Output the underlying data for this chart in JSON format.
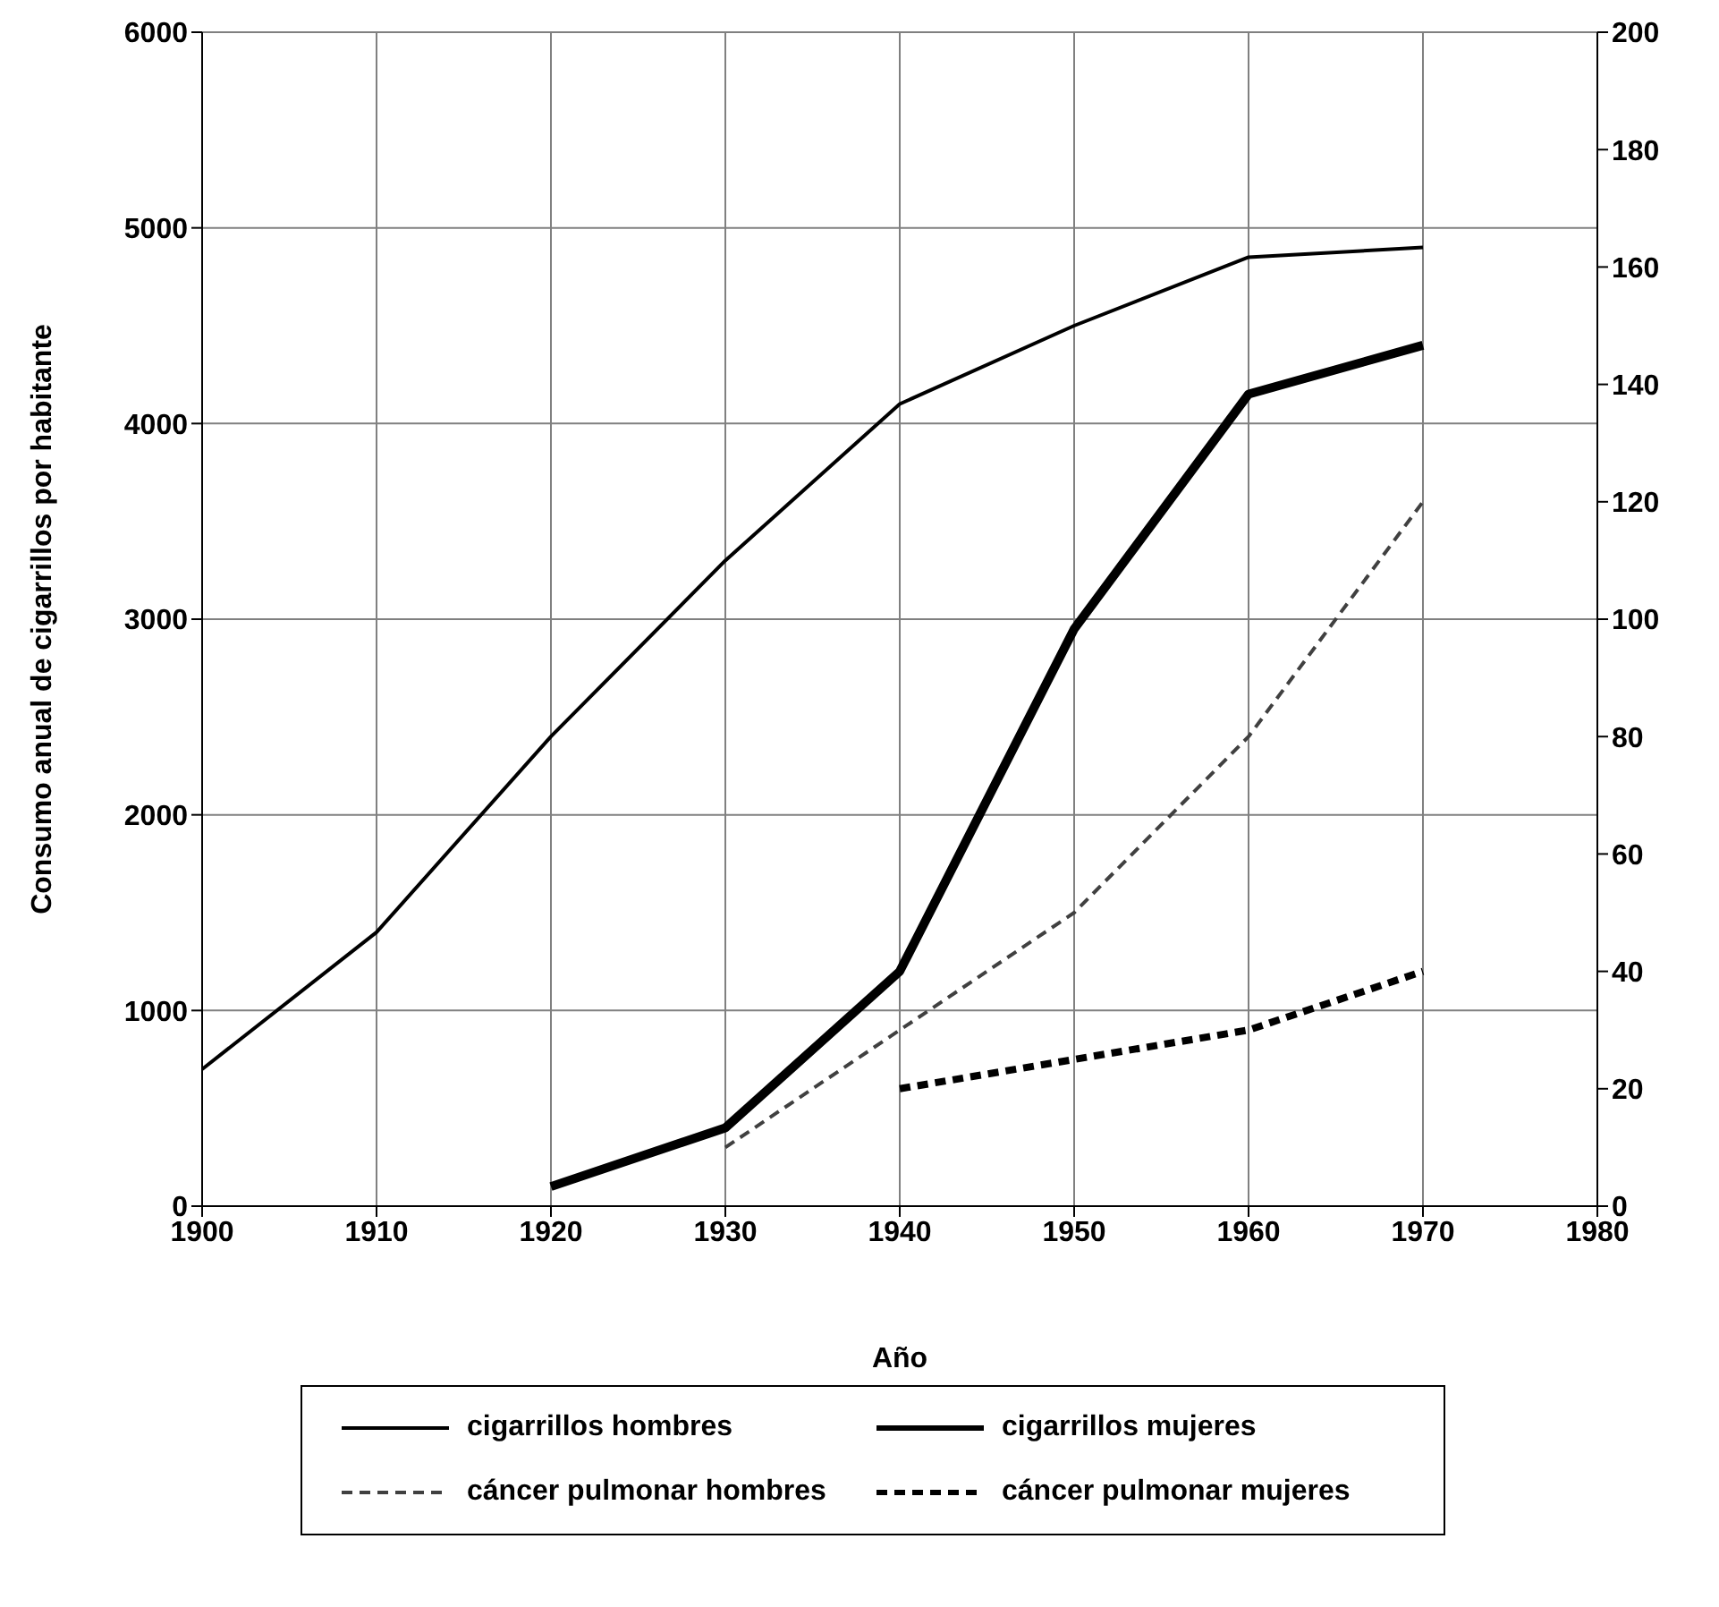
{
  "chart_data": {
    "type": "line",
    "xlabel": "Año",
    "ylabel": "Consumo anual de cigarrillos por habitante",
    "x": [
      1900,
      1910,
      1920,
      1930,
      1940,
      1950,
      1960,
      1970
    ],
    "series": [
      {
        "name": "cigarrillos hombres",
        "color": "#000000",
        "line_style": "solid",
        "values": [
          700,
          1400,
          2400,
          3300,
          4100,
          4500,
          4850,
          4900
        ]
      },
      {
        "name": "cigarrillos mujeres",
        "color": "#000000",
        "line_style": "solid",
        "values": [
          null,
          null,
          100,
          400,
          1200,
          2950,
          4150,
          4400
        ]
      },
      {
        "name": "cáncer pulmonar hombres",
        "color": "#404040",
        "line_style": "dashed",
        "axis": "y2",
        "values": [
          null,
          null,
          null,
          10,
          30,
          50,
          80,
          120
        ]
      },
      {
        "name": "cáncer pulmonar mujeres",
        "color": "#000000",
        "line_style": "dashed",
        "axis": "y2",
        "values": [
          null,
          null,
          null,
          null,
          20,
          25,
          30,
          40
        ]
      }
    ],
    "xlim": [
      1900,
      1980
    ],
    "xticks": [
      1900,
      1910,
      1920,
      1930,
      1940,
      1950,
      1960,
      1970,
      1980
    ],
    "ylim": [
      0,
      6000
    ],
    "yticks": [
      0,
      1000,
      2000,
      3000,
      4000,
      5000,
      6000
    ],
    "y2lim": [
      0,
      200
    ],
    "y2ticks": [
      0,
      20,
      40,
      60,
      80,
      100,
      120,
      140,
      160,
      180,
      200
    ],
    "grid": true,
    "legend": "bottom",
    "marker": "none"
  }
}
